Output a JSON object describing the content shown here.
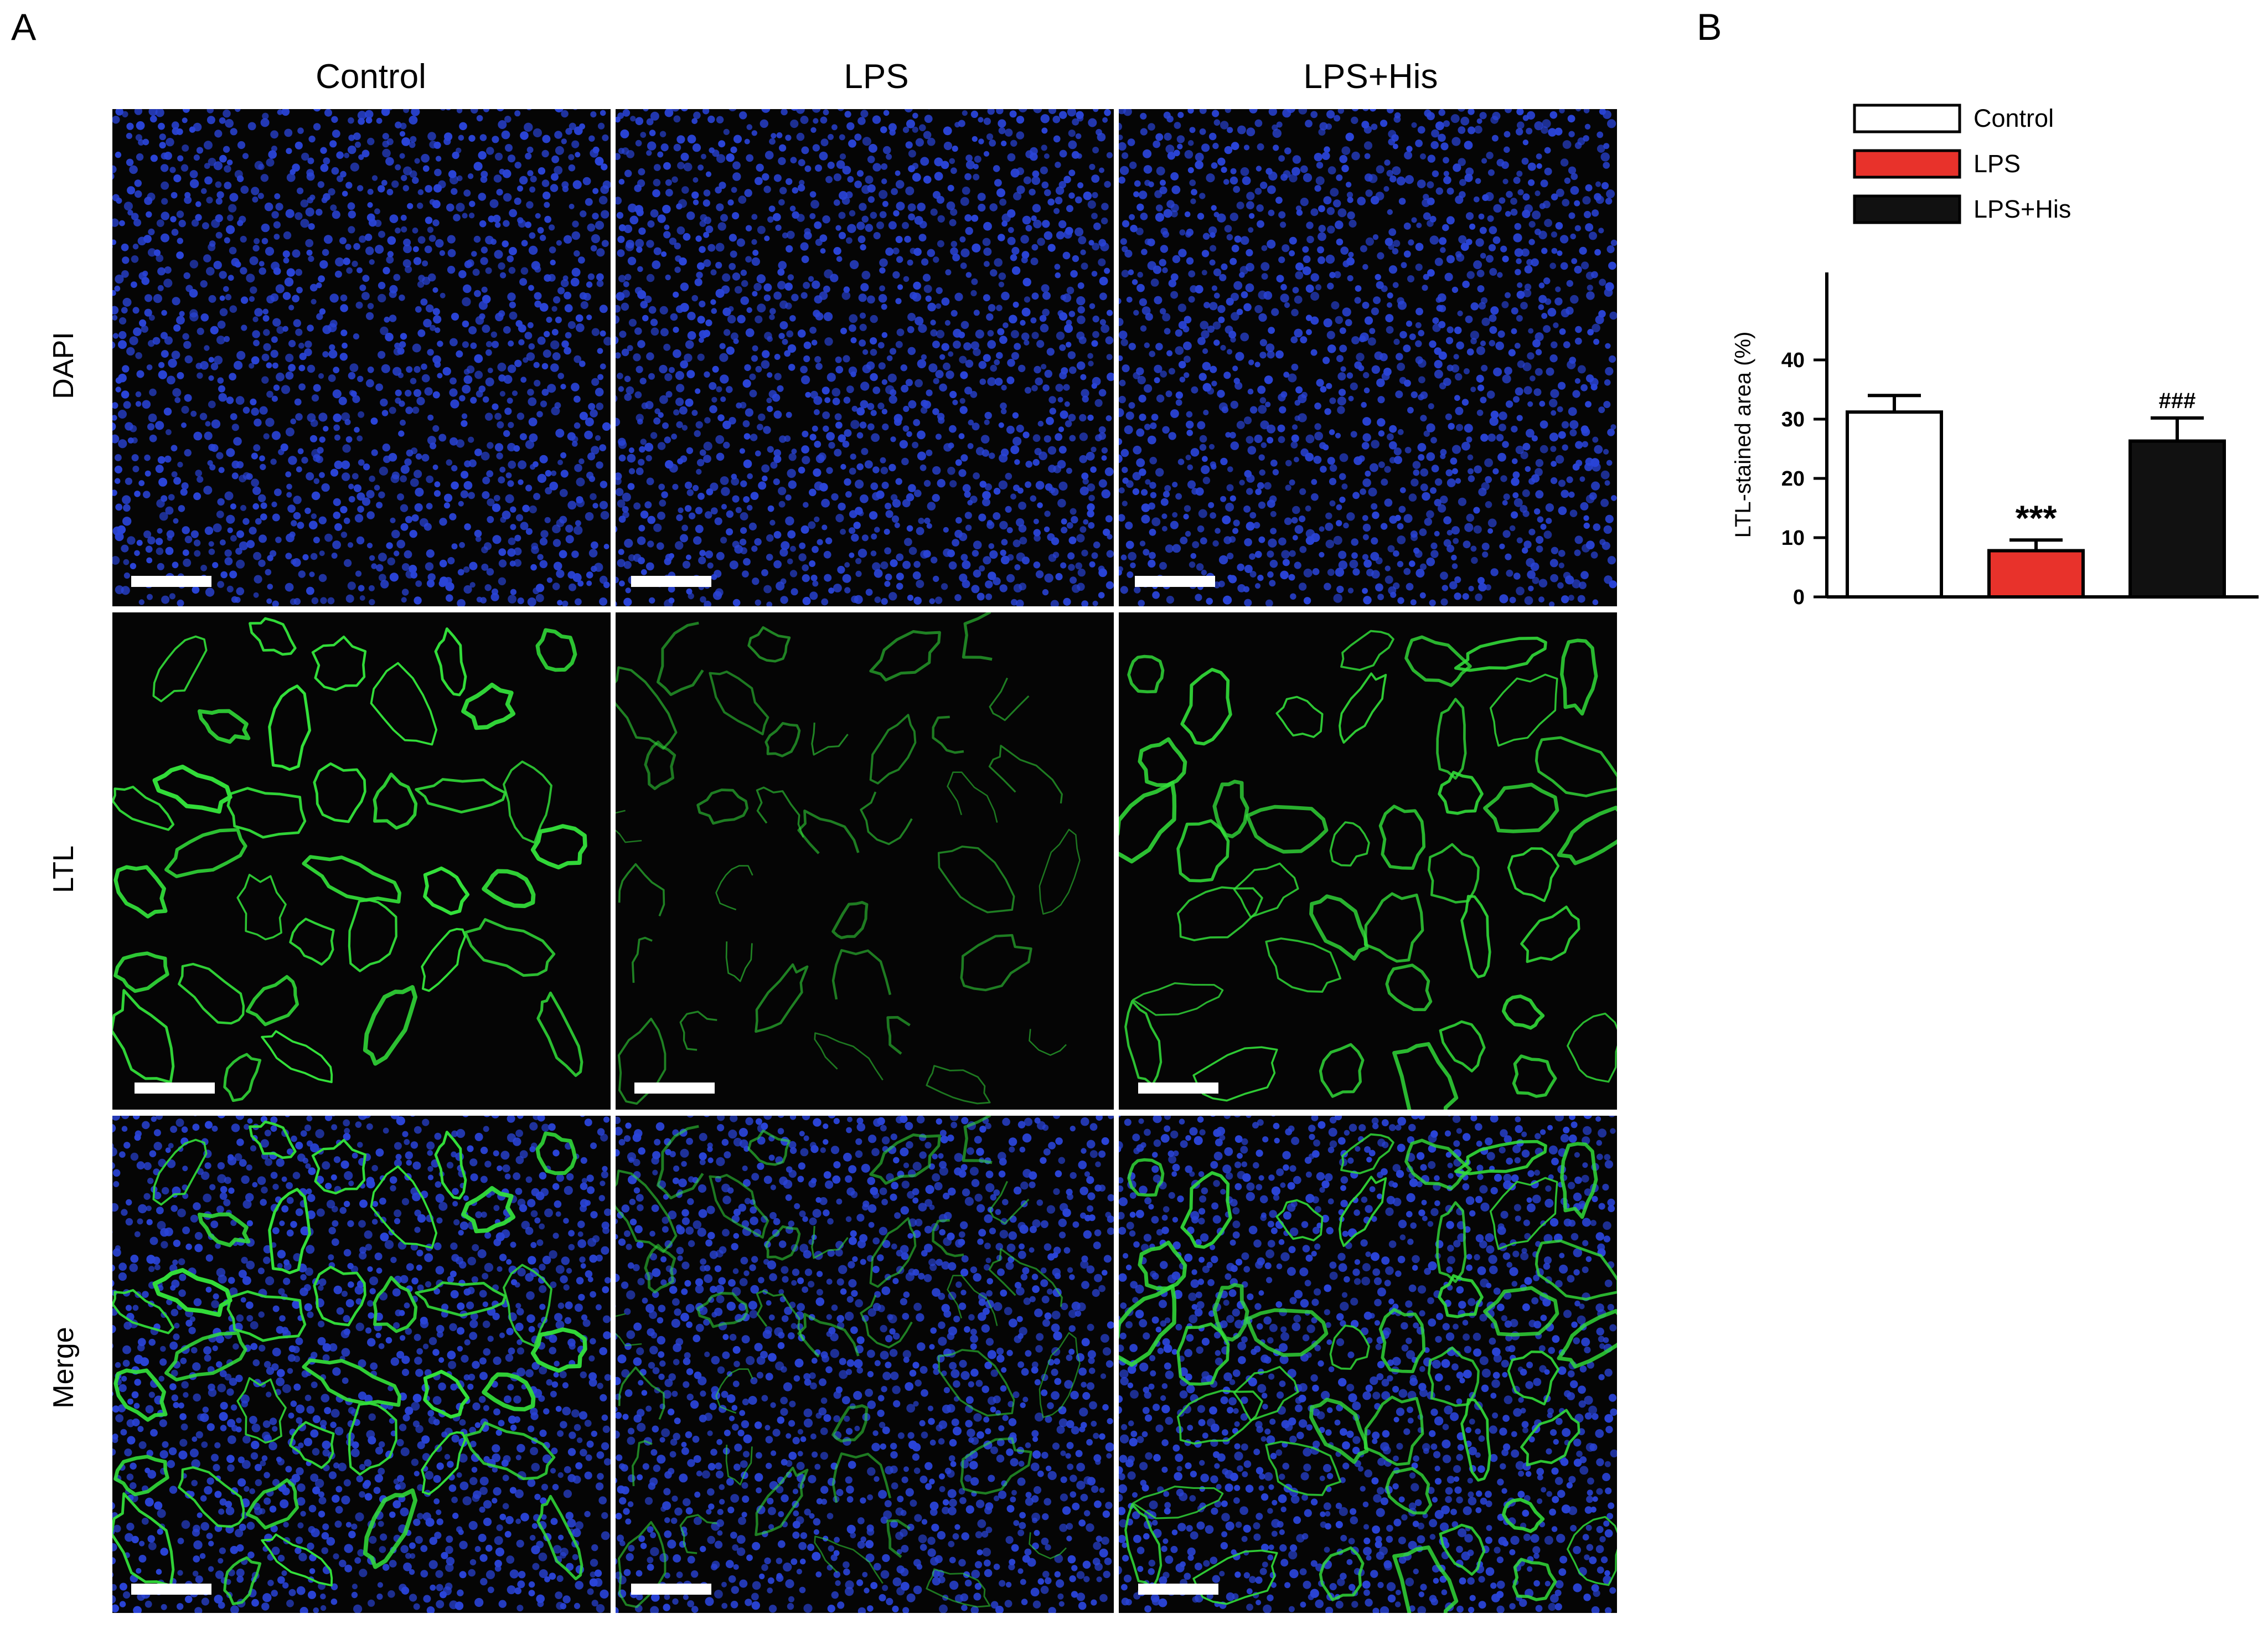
{
  "figure": {
    "panel_a_label": "A",
    "panel_b_label": "B",
    "columns": [
      "Control",
      "LPS",
      "LPS+His"
    ],
    "rows": [
      "DAPI",
      "LTL",
      "Merge"
    ],
    "image_panels": [
      {
        "row": "DAPI",
        "column": "Control",
        "stain": "dapi",
        "ltl_intensity": 0
      },
      {
        "row": "DAPI",
        "column": "LPS",
        "stain": "dapi",
        "ltl_intensity": 0
      },
      {
        "row": "DAPI",
        "column": "LPS+His",
        "stain": "dapi",
        "ltl_intensity": 0
      },
      {
        "row": "LTL",
        "column": "Control",
        "stain": "ltl",
        "ltl_intensity": 1.0
      },
      {
        "row": "LTL",
        "column": "LPS",
        "stain": "ltl",
        "ltl_intensity": 0.35
      },
      {
        "row": "LTL",
        "column": "LPS+His",
        "stain": "ltl",
        "ltl_intensity": 0.85
      },
      {
        "row": "Merge",
        "column": "Control",
        "stain": "merge",
        "ltl_intensity": 1.0
      },
      {
        "row": "Merge",
        "column": "LPS",
        "stain": "merge",
        "ltl_intensity": 0.35
      },
      {
        "row": "Merge",
        "column": "LPS+His",
        "stain": "merge",
        "ltl_intensity": 0.85
      }
    ],
    "colors": {
      "dapi": "#2a44d8",
      "ltl": "#33e03a",
      "background": "#050505",
      "control_bar": "#ffffff",
      "lps_bar": "#e8322b",
      "lps_his_bar": "#111111"
    }
  },
  "chart_data": {
    "type": "bar",
    "categories": [
      "Control",
      "LPS",
      "LPS+His"
    ],
    "values": [
      31.2,
      7.8,
      26.3
    ],
    "errors": [
      2.8,
      1.8,
      3.9
    ],
    "annotations": [
      "",
      "***",
      "###"
    ],
    "legend": [
      "Control",
      "LPS",
      "LPS+His"
    ],
    "legend_placement": "top",
    "ylabel": "LTL-stained area (%)",
    "xlabel": "",
    "ylim": [
      0,
      40
    ],
    "yticks": [
      0,
      10,
      20,
      30,
      40
    ],
    "grid": false
  }
}
